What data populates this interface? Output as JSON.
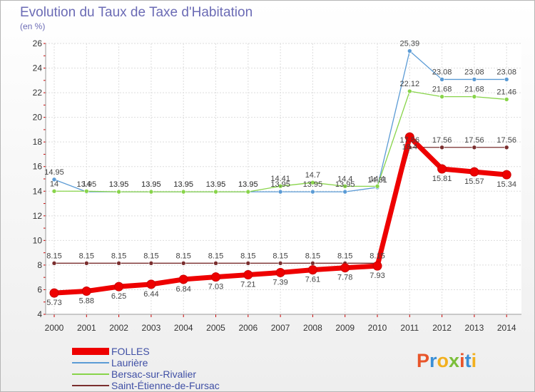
{
  "chart_data": {
    "type": "line",
    "title": "Evolution du Taux de Taxe d'Habitation",
    "unit_label": "(en %)",
    "x": [
      "2000",
      "2001",
      "2002",
      "2003",
      "2004",
      "2005",
      "2006",
      "2007",
      "2008",
      "2009",
      "2010",
      "2011",
      "2012",
      "2013",
      "2014"
    ],
    "ylim": [
      4,
      26
    ],
    "yticks": [
      "4",
      "6",
      "8",
      "10",
      "12",
      "14",
      "16",
      "18",
      "20",
      "22",
      "24",
      "26"
    ],
    "grid": true,
    "legend_position": "bottom-left",
    "series": [
      {
        "name": "FOLLES",
        "color": "#ee0000",
        "values": [
          5.73,
          5.88,
          6.25,
          6.44,
          6.84,
          7.03,
          7.21,
          7.39,
          7.61,
          7.78,
          7.93,
          18.4,
          15.81,
          15.57,
          15.34
        ],
        "labels": [
          "5.73",
          "5.88",
          "6.25",
          "6.44",
          "6.84",
          "7.03",
          "7.21",
          "7.39",
          "7.61",
          "7.78",
          "7.93",
          "18.4",
          "15.81",
          "15.57",
          "15.34"
        ]
      },
      {
        "name": "Laurière",
        "color": "#5b9bd5",
        "values": [
          14.95,
          13.95,
          13.95,
          13.95,
          13.95,
          13.95,
          13.95,
          13.95,
          13.95,
          13.95,
          14.31,
          25.39,
          23.08,
          23.08,
          23.08
        ],
        "labels": [
          "14.95",
          "13.95",
          "13.95",
          "13.95",
          "13.95",
          "13.95",
          "13.95",
          "13.95",
          "13.95",
          "13.95",
          "14.31",
          "25.39",
          "23.08",
          "23.08",
          "23.08"
        ]
      },
      {
        "name": "Bersac-sur-Rivalier",
        "color": "#88d44a",
        "values": [
          14,
          14,
          13.95,
          13.95,
          13.95,
          13.95,
          13.95,
          14.41,
          14.7,
          14.4,
          14.4,
          22.12,
          21.68,
          21.68,
          21.46
        ],
        "labels": [
          "14",
          "14",
          "13.95",
          "13.95",
          "13.95",
          "13.95",
          "13.95",
          "14.41",
          "14.7",
          "14.4",
          "14.4",
          "22.12",
          "21.68",
          "21.68",
          "21.46"
        ]
      },
      {
        "name": "Saint-Étienne-de-Fursac",
        "color": "#7a2e2e",
        "values": [
          8.15,
          8.15,
          8.15,
          8.15,
          8.15,
          8.15,
          8.15,
          8.15,
          8.15,
          8.15,
          8.15,
          17.56,
          17.56,
          17.56,
          17.56
        ],
        "labels": [
          "8.15",
          "8.15",
          "8.15",
          "8.15",
          "8.15",
          "8.15",
          "8.15",
          "8.15",
          "8.15",
          "8.15",
          "8.15",
          "17.56",
          "17.56",
          "17.56",
          "17.56"
        ]
      }
    ]
  },
  "logo": {
    "text": "Proxiti",
    "colors": [
      "#e8552a",
      "#3a8fd6",
      "#f2b01e",
      "#7bbf3a",
      "#e8552a",
      "#3a8fd6",
      "#f2b01e"
    ]
  }
}
